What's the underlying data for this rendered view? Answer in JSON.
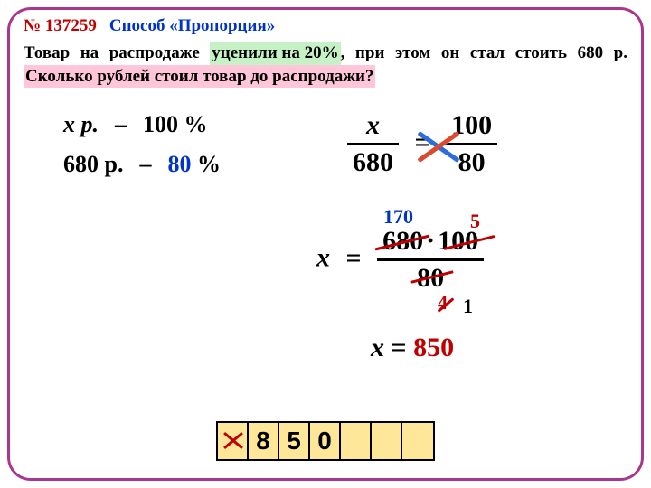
{
  "colors": {
    "frame": "#a8378d",
    "red": "#c00000",
    "blue": "#0033cc",
    "text": "#000000",
    "hl_green": "#c6f0c6",
    "hl_pink": "#ffc6d9",
    "answer_cell_bg": "#ffe79a",
    "x_mark": "#c00000",
    "arrow_blue": "#2e6dd9",
    "arrow_red": "#d94a2e"
  },
  "header": {
    "task_no": "№ 137259",
    "method": "Способ «Пропорция»"
  },
  "problem": {
    "part1": "Товар на распродаже ",
    "highlight1": "уценили на 20%",
    "part2": ", при этом он стал стоить 680 р. ",
    "highlight2": "Сколько рублей стоил товар до распродажи?"
  },
  "setup": {
    "row1_left": "x р.",
    "row1_dash": "–",
    "row1_right": "100 %",
    "row2_left": "680 р.",
    "row2_dash": "–",
    "row2_right_val": "80",
    "row2_right_unit": " %"
  },
  "proportion": {
    "left_num": "x",
    "left_den": "680",
    "right_num": "100",
    "right_den": "80",
    "eq": "="
  },
  "solve": {
    "lhs": "x",
    "eq": "=",
    "num_a": "680",
    "num_dot": "·",
    "num_b": "100",
    "den": "80",
    "ann_top_left": "170",
    "ann_top_right": "5",
    "ann_bot_left": "4",
    "ann_bot_right": "1"
  },
  "final": {
    "lhs": "x",
    "eq": " = ",
    "value": "850"
  },
  "answer_cells": [
    "X",
    "8",
    "5",
    "0",
    "",
    "",
    ""
  ]
}
